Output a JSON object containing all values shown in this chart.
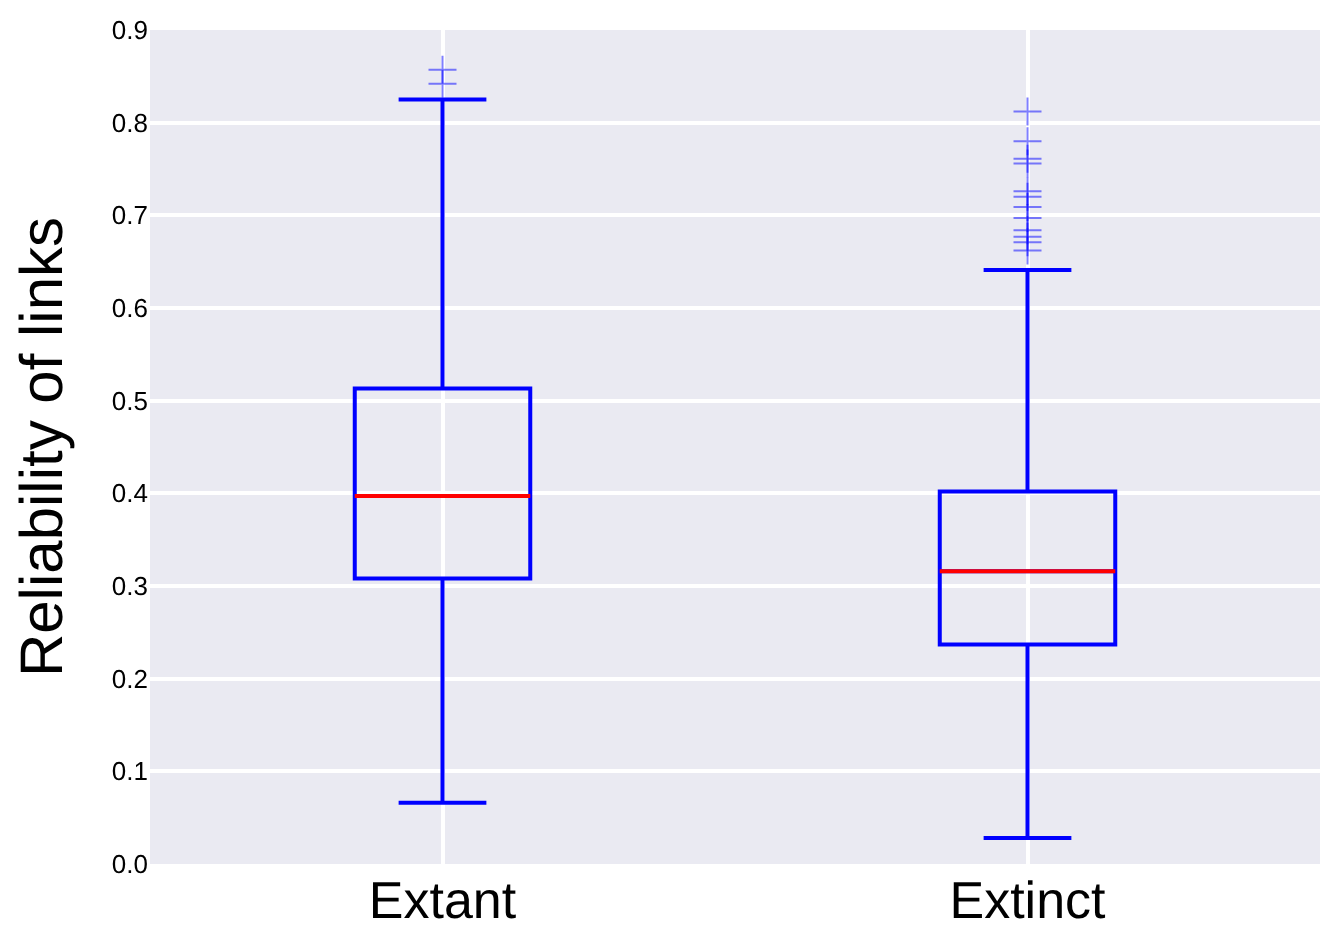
{
  "chart_data": {
    "type": "box",
    "ylabel": "Reliability of links",
    "categories": [
      "Extant",
      "Extinct"
    ],
    "boxes": [
      {
        "low": 0.066,
        "q1": 0.308,
        "median": 0.397,
        "q3": 0.513,
        "high": 0.825,
        "outliers": [
          0.857,
          0.842
        ]
      },
      {
        "low": 0.028,
        "q1": 0.237,
        "median": 0.316,
        "q3": 0.402,
        "high": 0.641,
        "outliers": [
          0.812,
          0.78,
          0.761,
          0.756,
          0.726,
          0.72,
          0.709,
          0.697,
          0.684,
          0.677,
          0.671,
          0.662
        ]
      }
    ],
    "color": "#0000ff",
    "ylim": [
      0,
      0.9
    ],
    "yticks": [
      {
        "value": 0,
        "label": "0.0"
      },
      0.1,
      0.2,
      0.3,
      0.4,
      0.5,
      0.6,
      0.7,
      0.8,
      0.9
    ],
    "grid": true,
    "marker": "cross"
  }
}
